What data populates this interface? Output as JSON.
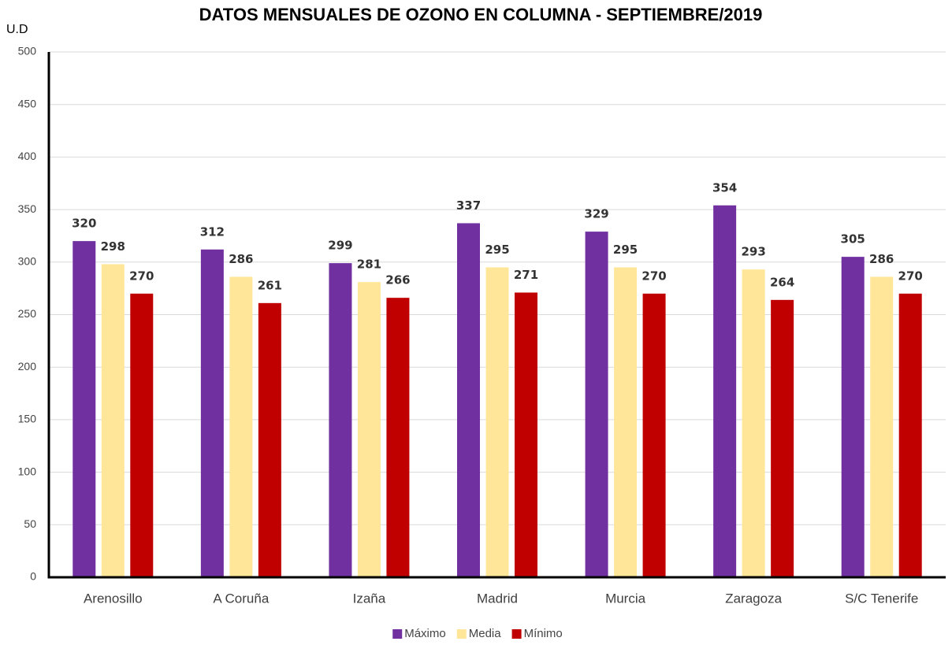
{
  "chart_data": {
    "type": "bar",
    "title": "DATOS MENSUALES DE OZONO EN COLUMNA - SEPTIEMBRE/2019",
    "y_label": "U.D",
    "categories": [
      "Arenosillo",
      "A Coruña",
      "Izaña",
      "Madrid",
      "Murcia",
      "Zaragoza",
      "S/C Tenerife"
    ],
    "series": [
      {
        "name": "Máximo",
        "color": "#7030a0",
        "values": [
          320,
          312,
          299,
          337,
          329,
          354,
          305
        ]
      },
      {
        "name": "Media",
        "color": "#ffe699",
        "values": [
          298,
          286,
          281,
          295,
          295,
          293,
          286
        ]
      },
      {
        "name": "Mínimo",
        "color": "#c00000",
        "values": [
          270,
          261,
          266,
          271,
          270,
          264,
          270
        ]
      }
    ],
    "ylim": [
      0,
      500
    ],
    "yticks": [
      0,
      50,
      100,
      150,
      200,
      250,
      300,
      350,
      400,
      450,
      500
    ],
    "grid": true,
    "legend": "bottom"
  }
}
